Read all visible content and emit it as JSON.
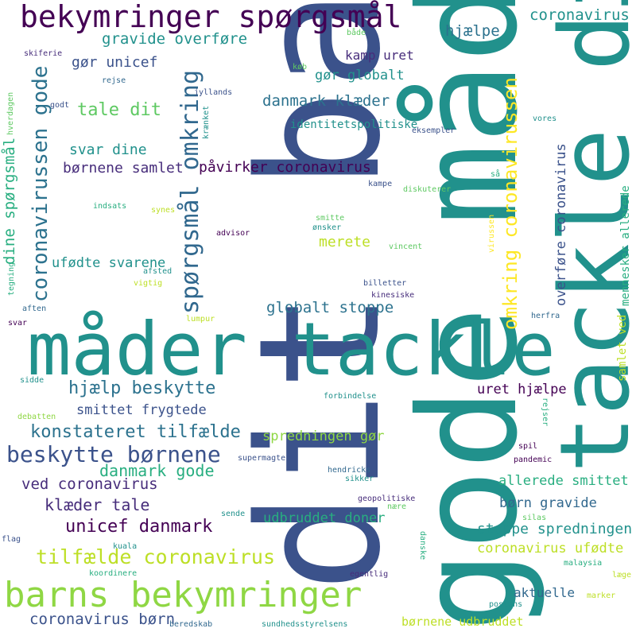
{
  "words": [
    {
      "id": "dit-barn",
      "text": "dit barn",
      "color": "#3b528b"
    },
    {
      "id": "gode-maader",
      "text": "gode måder",
      "color": "#21918c"
    },
    {
      "id": "tackle-dit",
      "text": "tackle dit",
      "color": "#21918c"
    },
    {
      "id": "maader-tackle",
      "text": "måder tackle",
      "color": "#21918c"
    },
    {
      "id": "barns-bekymringer",
      "text": "barns bekymringer",
      "color": "#8fd744"
    },
    {
      "id": "bekymringer-spoergsmaal",
      "text": "bekymringer spørgsmål",
      "color": "#440154"
    },
    {
      "id": "spoergsmaal-omkring",
      "text": "spørgsmål omkring",
      "color": "#31688e"
    },
    {
      "id": "coronavirussen-gode",
      "text": "coronavirussen gode",
      "color": "#2c728e"
    },
    {
      "id": "omkring-coronavirussen",
      "text": "omkring coronavirussen",
      "color": "#fde725"
    },
    {
      "id": "beskytte-boernene",
      "text": "beskytte børnene",
      "color": "#3b528b"
    },
    {
      "id": "tilfaelde-coronavirus",
      "text": "tilfælde coronavirus",
      "color": "#bddf26"
    },
    {
      "id": "hjaelp-beskytte",
      "text": "hjælp beskytte",
      "color": "#2c728e"
    },
    {
      "id": "konstateret-tilfaelde",
      "text": "konstateret tilfælde",
      "color": "#2c728e"
    },
    {
      "id": "unicef-danmark",
      "text": "unicef danmark",
      "color": "#440154"
    },
    {
      "id": "danmark-gode",
      "text": "danmark gode",
      "color": "#28ae80"
    },
    {
      "id": "ved-coronavirus",
      "text": "ved coronavirus",
      "color": "#472d7b"
    },
    {
      "id": "klaeder-tale",
      "text": "klæder tale",
      "color": "#472d7b"
    },
    {
      "id": "coronavirus-boern",
      "text": "coronavirus børn",
      "color": "#3b528b"
    },
    {
      "id": "coronavirus-top",
      "text": "coronavirus",
      "color": "#21918c"
    },
    {
      "id": "hjaelpe",
      "text": "hjælpe",
      "color": "#2c728e"
    },
    {
      "id": "gravide-overfoere",
      "text": "gravide overføre",
      "color": "#21918c"
    },
    {
      "id": "goer-unicef",
      "text": "gør unicef",
      "color": "#3b528b"
    },
    {
      "id": "kamp-uret",
      "text": "kamp uret",
      "color": "#472d7b"
    },
    {
      "id": "goer-globalt",
      "text": "gør globalt",
      "color": "#21918c"
    },
    {
      "id": "tale-dit",
      "text": "tale dit",
      "color": "#5ec962"
    },
    {
      "id": "danmark-klaeder",
      "text": "danmark klæder",
      "color": "#2c728e"
    },
    {
      "id": "identitetspolitiske",
      "text": "identitetspolitiske",
      "color": "#21918c"
    },
    {
      "id": "svar-dine",
      "text": "svar dine",
      "color": "#21918c"
    },
    {
      "id": "boernene-samlet",
      "text": "børnene samlet",
      "color": "#472d7b"
    },
    {
      "id": "paavirker-coronavirus",
      "text": "påvirker coronavirus",
      "color": "#440154"
    },
    {
      "id": "dine-spoergsmaal",
      "text": "dine spørgsmål",
      "color": "#28ae80"
    },
    {
      "id": "ufoedte-svarene",
      "text": "ufødte svarene",
      "color": "#21918c"
    },
    {
      "id": "merete",
      "text": "merete",
      "color": "#bddf26"
    },
    {
      "id": "globalt-stoppe",
      "text": "globalt stoppe",
      "color": "#2c728e"
    },
    {
      "id": "overfoere-coronavirus",
      "text": "overføre coronavirus",
      "color": "#3b528b"
    },
    {
      "id": "mennesker-allerede",
      "text": "mennesker allerede",
      "color": "#28ae80"
    },
    {
      "id": "samlet-ved",
      "text": "samlet ved",
      "color": "#bddf26"
    },
    {
      "id": "smittet-frygtede",
      "text": "smittet frygtede",
      "color": "#3b528b"
    },
    {
      "id": "spredningen-goer",
      "text": "spredningen gør",
      "color": "#8fd744"
    },
    {
      "id": "uret-hjaelpe",
      "text": "uret hjælpe",
      "color": "#440154"
    },
    {
      "id": "allerede-smittet",
      "text": "allerede smittet",
      "color": "#28ae80"
    },
    {
      "id": "boern-gravide",
      "text": "børn gravide",
      "color": "#31688e"
    },
    {
      "id": "stoppe-spredningen",
      "text": "stoppe spredningen",
      "color": "#21918c"
    },
    {
      "id": "coronavirus-ufoedte",
      "text": "coronavirus ufødte",
      "color": "#bddf26"
    },
    {
      "id": "udbruddet-doner",
      "text": "udbruddet doner",
      "color": "#28ae80"
    },
    {
      "id": "aktuelle",
      "text": "aktuelle",
      "color": "#31688e"
    },
    {
      "id": "boernene-udbruddet",
      "text": "børnene udbruddet",
      "color": "#bddf26"
    },
    {
      "id": "skiferie",
      "text": "skiferie",
      "color": "#472d7b"
    },
    {
      "id": "baade",
      "text": "både",
      "color": "#5ec962"
    },
    {
      "id": "koeb",
      "text": "køb",
      "color": "#5ec962"
    },
    {
      "id": "rejse",
      "text": "rejse",
      "color": "#31688e"
    },
    {
      "id": "jyllands",
      "text": "jyllands",
      "color": "#3b528b"
    },
    {
      "id": "godt",
      "text": "godt",
      "color": "#3b528b"
    },
    {
      "id": "hverdagen",
      "text": "hverdagen",
      "color": "#5ec962"
    },
    {
      "id": "kraenket",
      "text": "krænket",
      "color": "#21918c"
    },
    {
      "id": "vores",
      "text": "vores",
      "color": "#21918c"
    },
    {
      "id": "eksempler",
      "text": "eksempler",
      "color": "#3b528b"
    },
    {
      "id": "saa",
      "text": "så",
      "color": "#28ae80"
    },
    {
      "id": "kampe",
      "text": "kampe",
      "color": "#3b528b"
    },
    {
      "id": "diskuterer",
      "text": "diskuterer",
      "color": "#5ec962"
    },
    {
      "id": "indsats",
      "text": "indsats",
      "color": "#28ae80"
    },
    {
      "id": "synes",
      "text": "synes",
      "color": "#bddf26"
    },
    {
      "id": "smitte",
      "text": "smitte",
      "color": "#5ec962"
    },
    {
      "id": "oensker",
      "text": "ønsker",
      "color": "#21918c"
    },
    {
      "id": "advisor",
      "text": "advisor",
      "color": "#440154"
    },
    {
      "id": "virussen",
      "text": "virussen",
      "color": "#fde725"
    },
    {
      "id": "vincent",
      "text": "vincent",
      "color": "#5ec962"
    },
    {
      "id": "afsted",
      "text": "afsted",
      "color": "#21918c"
    },
    {
      "id": "vigtig",
      "text": "vigtig",
      "color": "#bddf26"
    },
    {
      "id": "billetter",
      "text": "billetter",
      "color": "#3b528b"
    },
    {
      "id": "kinesiske",
      "text": "kinesiske",
      "color": "#472d7b"
    },
    {
      "id": "tegning",
      "text": "tegning",
      "color": "#28ae80"
    },
    {
      "id": "aften",
      "text": "aften",
      "color": "#31688e"
    },
    {
      "id": "svar",
      "text": "svar",
      "color": "#440154"
    },
    {
      "id": "lumpur",
      "text": "lumpur",
      "color": "#bddf26"
    },
    {
      "id": "herfra",
      "text": "herfra",
      "color": "#31688e"
    },
    {
      "id": "sidde",
      "text": "sidde",
      "color": "#21918c"
    },
    {
      "id": "debatten",
      "text": "debatten",
      "color": "#8fd744"
    },
    {
      "id": "forbindelse",
      "text": "forbindelse",
      "color": "#21918c"
    },
    {
      "id": "rejser",
      "text": "rejser",
      "color": "#28ae80"
    },
    {
      "id": "spil",
      "text": "spil",
      "color": "#440154"
    },
    {
      "id": "supermagter",
      "text": "supermagter",
      "color": "#3b528b"
    },
    {
      "id": "hendricks",
      "text": "hendricks",
      "color": "#31688e"
    },
    {
      "id": "sikker",
      "text": "sikker",
      "color": "#21918c"
    },
    {
      "id": "pandemic",
      "text": "pandemic",
      "color": "#440154"
    },
    {
      "id": "geopolitiske",
      "text": "geopolitiske",
      "color": "#472d7b"
    },
    {
      "id": "naere",
      "text": "nære",
      "color": "#5ec962"
    },
    {
      "id": "sende",
      "text": "sende",
      "color": "#21918c"
    },
    {
      "id": "danske",
      "text": "danske",
      "color": "#28ae80"
    },
    {
      "id": "silas",
      "text": "silas",
      "color": "#5ec962"
    },
    {
      "id": "flag",
      "text": "flag",
      "color": "#3b528b"
    },
    {
      "id": "kuala",
      "text": "kuala",
      "color": "#21918c"
    },
    {
      "id": "malaysia",
      "text": "malaysia",
      "color": "#28ae80"
    },
    {
      "id": "koordinere",
      "text": "koordinere",
      "color": "#28ae80"
    },
    {
      "id": "egentlig",
      "text": "egentlig",
      "color": "#472d7b"
    },
    {
      "id": "laege",
      "text": "læge",
      "color": "#bddf26"
    },
    {
      "id": "marker",
      "text": "marker",
      "color": "#bddf26"
    },
    {
      "id": "postens",
      "text": "postens",
      "color": "#21918c"
    },
    {
      "id": "beredskab",
      "text": "beredskab",
      "color": "#31688e"
    },
    {
      "id": "sundhedsstyrelsens",
      "text": "sundhedsstyrelsens",
      "color": "#21918c"
    }
  ]
}
